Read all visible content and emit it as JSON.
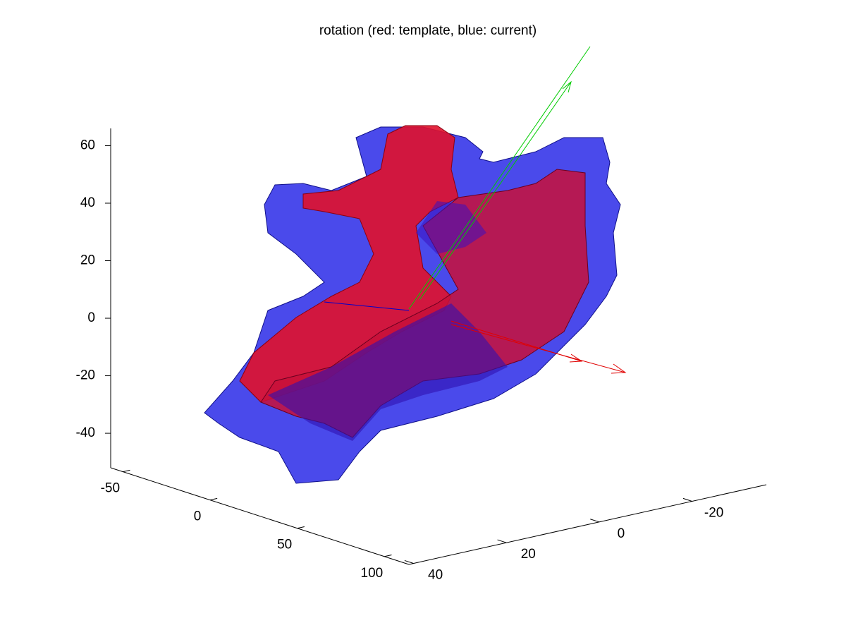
{
  "chart_data": {
    "type": "surface3d",
    "title": "rotation (red: template, blue: current)",
    "xlim": [
      -57,
      114
    ],
    "xticks": [
      -50,
      0,
      50,
      100
    ],
    "ylim": [
      41,
      -36
    ],
    "yticks": [
      40,
      20,
      0,
      -20
    ],
    "zlim": [
      -52,
      66
    ],
    "zticks": [
      -40,
      -20,
      0,
      20,
      40,
      60
    ]
  }
}
